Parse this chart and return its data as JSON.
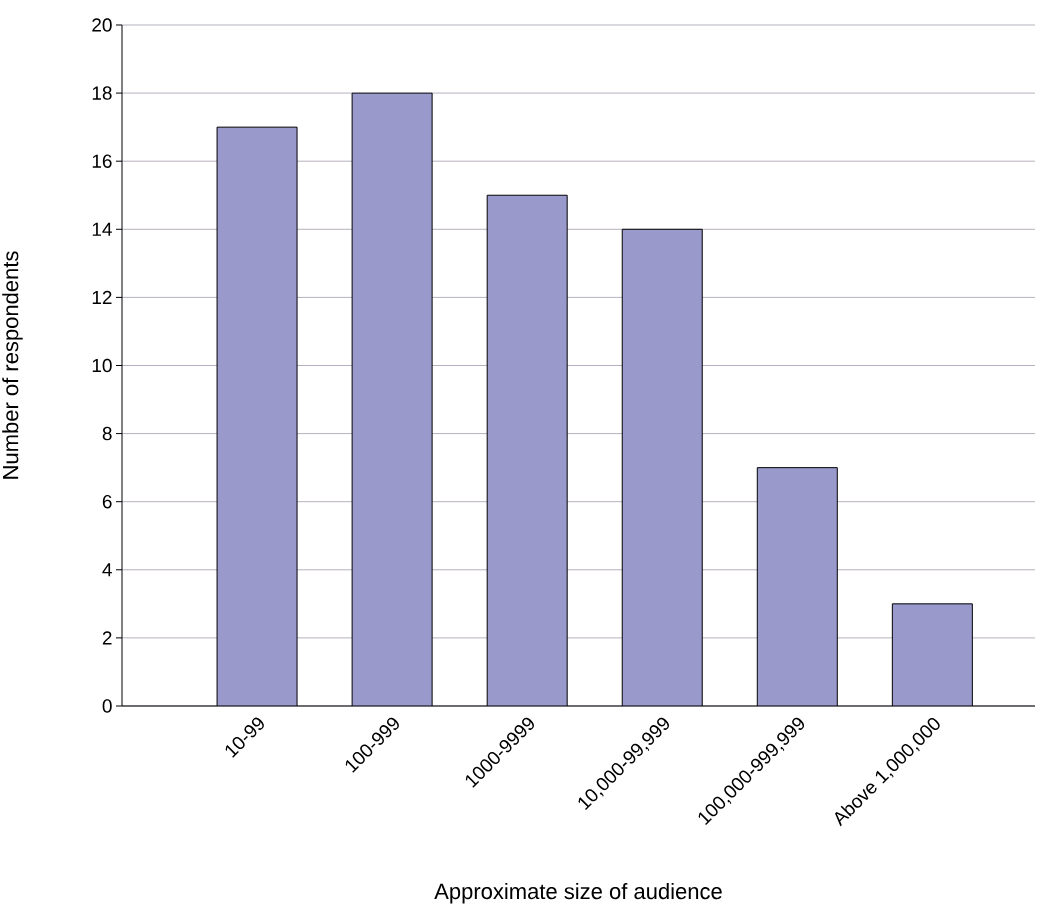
{
  "chart_data": {
    "type": "bar",
    "xlabel": "Approximate size of audience",
    "ylabel": "Number of respondents",
    "categories": [
      "10-99",
      "100-999",
      "1000-9999",
      "10,000-99,999",
      "100,000-999,999",
      "Above 1,000,000"
    ],
    "values": [
      17,
      18,
      15,
      14,
      7,
      3
    ],
    "color": "#9999cc",
    "ylim": [
      0,
      20
    ],
    "yticks": [
      0,
      2,
      4,
      6,
      8,
      10,
      12,
      14,
      16,
      18,
      20
    ],
    "grid": "y"
  }
}
